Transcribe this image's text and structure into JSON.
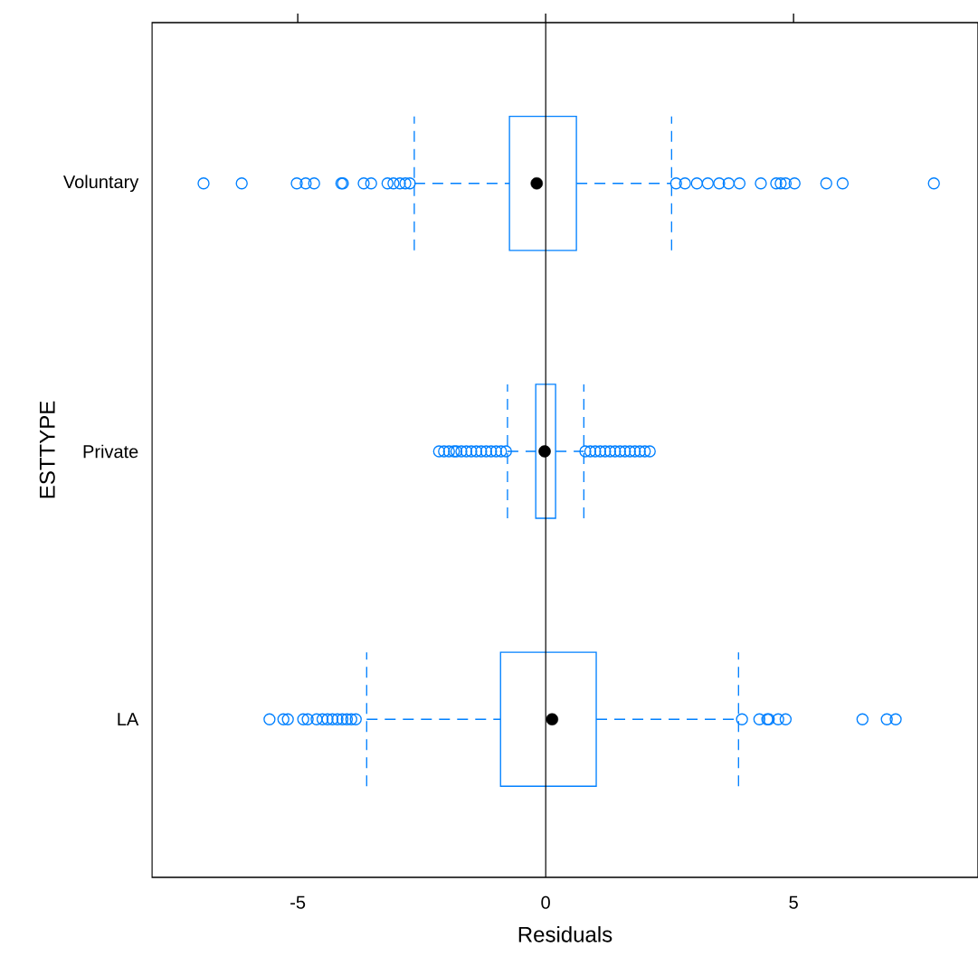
{
  "chart_data": {
    "type": "box",
    "orientation": "horizontal",
    "xlabel": "Residuals",
    "ylabel": "ESTTYPE",
    "color": "#0080ff",
    "categories": [
      "Voluntary",
      "Private",
      "LA"
    ],
    "xlim": [
      -7.94,
      8.72
    ],
    "xticks": [
      -5,
      0,
      5
    ],
    "ref_lines": [
      {
        "axis": "x",
        "value": 0,
        "color": "#000000"
      }
    ],
    "boxes": [
      {
        "low": -2.65,
        "q1": -0.73,
        "median": -0.18,
        "q3": 0.62,
        "high": 2.54,
        "outliers": [
          -6.9,
          -6.13,
          -5.02,
          -4.84,
          -4.67,
          -4.12,
          -4.09,
          -3.67,
          -3.52,
          -3.19,
          -3.07,
          -2.94,
          -2.83,
          -2.74,
          2.63,
          2.81,
          3.05,
          3.27,
          3.5,
          3.69,
          3.91,
          4.34,
          4.65,
          4.74,
          4.84,
          5.02,
          5.66,
          5.99,
          7.83
        ]
      },
      {
        "low": -0.77,
        "q1": -0.2,
        "median": -0.02,
        "q3": 0.2,
        "high": 0.77,
        "outliers": [
          -2.15,
          -2.05,
          -1.95,
          -1.85,
          -1.8,
          -1.7,
          -1.6,
          -1.5,
          -1.4,
          -1.3,
          -1.2,
          -1.1,
          -1.0,
          -0.9,
          -0.8,
          0.8,
          0.9,
          1.0,
          1.1,
          1.2,
          1.3,
          1.4,
          1.5,
          1.6,
          1.7,
          1.8,
          1.9,
          2.0,
          2.1
        ]
      },
      {
        "low": -3.61,
        "q1": -0.91,
        "median": 0.13,
        "q3": 1.02,
        "high": 3.89,
        "outliers": [
          -5.57,
          -5.29,
          -5.2,
          -4.89,
          -4.8,
          -4.62,
          -4.5,
          -4.4,
          -4.3,
          -4.2,
          -4.1,
          -4.01,
          -3.92,
          -3.83,
          3.96,
          4.31,
          4.47,
          4.5,
          4.69,
          4.84,
          6.39,
          6.88,
          7.06
        ]
      }
    ]
  }
}
